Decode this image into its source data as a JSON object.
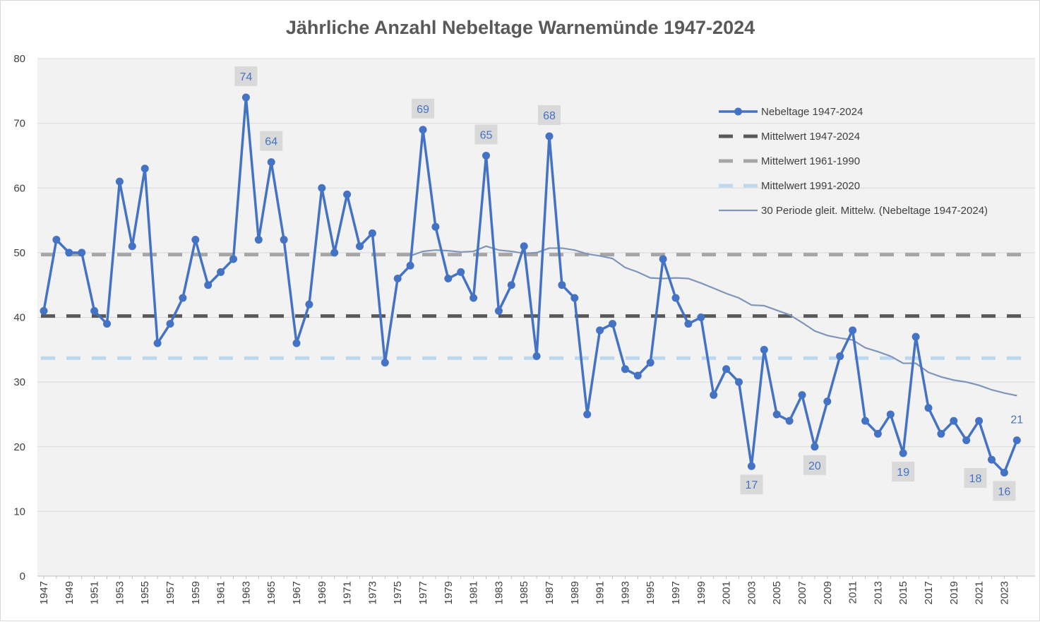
{
  "chart_data": {
    "type": "line",
    "title": "Jährliche Anzahl Nebeltage Warnemünde 1947-2024",
    "xlabel": "",
    "ylabel": "",
    "ylim": [
      0,
      80
    ],
    "yticks": [
      0,
      10,
      20,
      30,
      40,
      50,
      60,
      70,
      80
    ],
    "grid": true,
    "legend_position": "right",
    "x": [
      1947,
      1948,
      1949,
      1950,
      1951,
      1952,
      1953,
      1954,
      1955,
      1956,
      1957,
      1958,
      1959,
      1960,
      1961,
      1962,
      1963,
      1964,
      1965,
      1966,
      1967,
      1968,
      1969,
      1970,
      1971,
      1972,
      1973,
      1974,
      1975,
      1976,
      1977,
      1978,
      1979,
      1980,
      1981,
      1982,
      1983,
      1984,
      1985,
      1986,
      1987,
      1988,
      1989,
      1990,
      1991,
      1992,
      1993,
      1994,
      1995,
      1996,
      1997,
      1998,
      1999,
      2000,
      2001,
      2002,
      2003,
      2004,
      2005,
      2006,
      2007,
      2008,
      2009,
      2010,
      2011,
      2012,
      2013,
      2014,
      2015,
      2016,
      2017,
      2018,
      2019,
      2020,
      2021,
      2022,
      2023,
      2024
    ],
    "x_tick_labels": [
      "1947",
      "1949",
      "1951",
      "1953",
      "1955",
      "1957",
      "1959",
      "1961",
      "1963",
      "1965",
      "1967",
      "1969",
      "1971",
      "1973",
      "1975",
      "1977",
      "1979",
      "1981",
      "1983",
      "1985",
      "1987",
      "1989",
      "1991",
      "1993",
      "1995",
      "1997",
      "1999",
      "2001",
      "2003",
      "2005",
      "2007",
      "2009",
      "2011",
      "2013",
      "2015",
      "2017",
      "2019",
      "2021",
      "2023"
    ],
    "series": [
      {
        "name": "Nebeltage 1947-2024",
        "style": "line-markers",
        "color": "#4472c4",
        "values": [
          41,
          52,
          50,
          50,
          41,
          39,
          61,
          51,
          63,
          36,
          39,
          43,
          52,
          45,
          47,
          49,
          74,
          52,
          64,
          52,
          36,
          42,
          60,
          50,
          59,
          51,
          53,
          33,
          46,
          48,
          69,
          54,
          46,
          47,
          43,
          65,
          41,
          45,
          51,
          34,
          68,
          45,
          43,
          25,
          38,
          39,
          32,
          31,
          33,
          49,
          43,
          39,
          40,
          28,
          32,
          30,
          17,
          35,
          25,
          24,
          28,
          20,
          27,
          34,
          38,
          24,
          22,
          25,
          19,
          37,
          26,
          22,
          24,
          21,
          24,
          18,
          16,
          21
        ]
      },
      {
        "name": "Mittelwert 1947-2024",
        "style": "dashed",
        "color": "#595959",
        "value": 40.2
      },
      {
        "name": "Mittelwert 1961-1990",
        "style": "dashed",
        "color": "#a6a6a6",
        "value": 49.7
      },
      {
        "name": "Mittelwert 1991-2020",
        "style": "dashed",
        "color": "#bdd7ee",
        "value": 33.7
      },
      {
        "name": "30 Periode gleit. Mittelw. (Nebeltage 1947-2024)",
        "style": "line",
        "color": "#7f96b8",
        "x": [
          1976,
          1977,
          1978,
          1979,
          1980,
          1981,
          1982,
          1983,
          1984,
          1985,
          1986,
          1987,
          1988,
          1989,
          1990,
          1991,
          1992,
          1993,
          1994,
          1995,
          1996,
          1997,
          1998,
          1999,
          2000,
          2001,
          2002,
          2003,
          2004,
          2005,
          2006,
          2007,
          2008,
          2009,
          2010,
          2011,
          2012,
          2013,
          2014,
          2015,
          2016,
          2017,
          2018,
          2019,
          2020,
          2021,
          2022,
          2023,
          2024
        ],
        "values": [
          49.5,
          50.2,
          50.4,
          50.3,
          50.1,
          50.2,
          51.0,
          50.4,
          50.2,
          49.9,
          50.0,
          50.7,
          50.7,
          50.4,
          49.8,
          49.5,
          49.1,
          47.7,
          47.0,
          46.1,
          46.0,
          46.1,
          46.0,
          45.3,
          44.5,
          43.7,
          43.0,
          41.9,
          41.8,
          41.1,
          40.4,
          39.2,
          37.9,
          37.2,
          36.8,
          36.5,
          35.3,
          34.7,
          34.0,
          32.9,
          32.9,
          31.5,
          30.8,
          30.3,
          30.0,
          29.5,
          28.8,
          28.3,
          27.9
        ]
      }
    ],
    "data_labels": [
      {
        "x": 1963,
        "text": "74",
        "pos": "above"
      },
      {
        "x": 1965,
        "text": "64",
        "pos": "above"
      },
      {
        "x": 1977,
        "text": "69",
        "pos": "above"
      },
      {
        "x": 1982,
        "text": "65",
        "pos": "above"
      },
      {
        "x": 1987,
        "text": "68",
        "pos": "above"
      },
      {
        "x": 2003,
        "text": "17",
        "pos": "below"
      },
      {
        "x": 2008,
        "text": "20",
        "pos": "below"
      },
      {
        "x": 2015,
        "text": "19",
        "pos": "below"
      },
      {
        "x": 2022,
        "text": "18",
        "pos": "below-left"
      },
      {
        "x": 2023,
        "text": "16",
        "pos": "below"
      },
      {
        "x": 2024,
        "text": "21",
        "pos": "above-plain"
      }
    ]
  },
  "colors": {
    "plot_background": "#f2f2f2",
    "gridline": "#d9d9d9",
    "label_box": "#d9d9d9"
  }
}
